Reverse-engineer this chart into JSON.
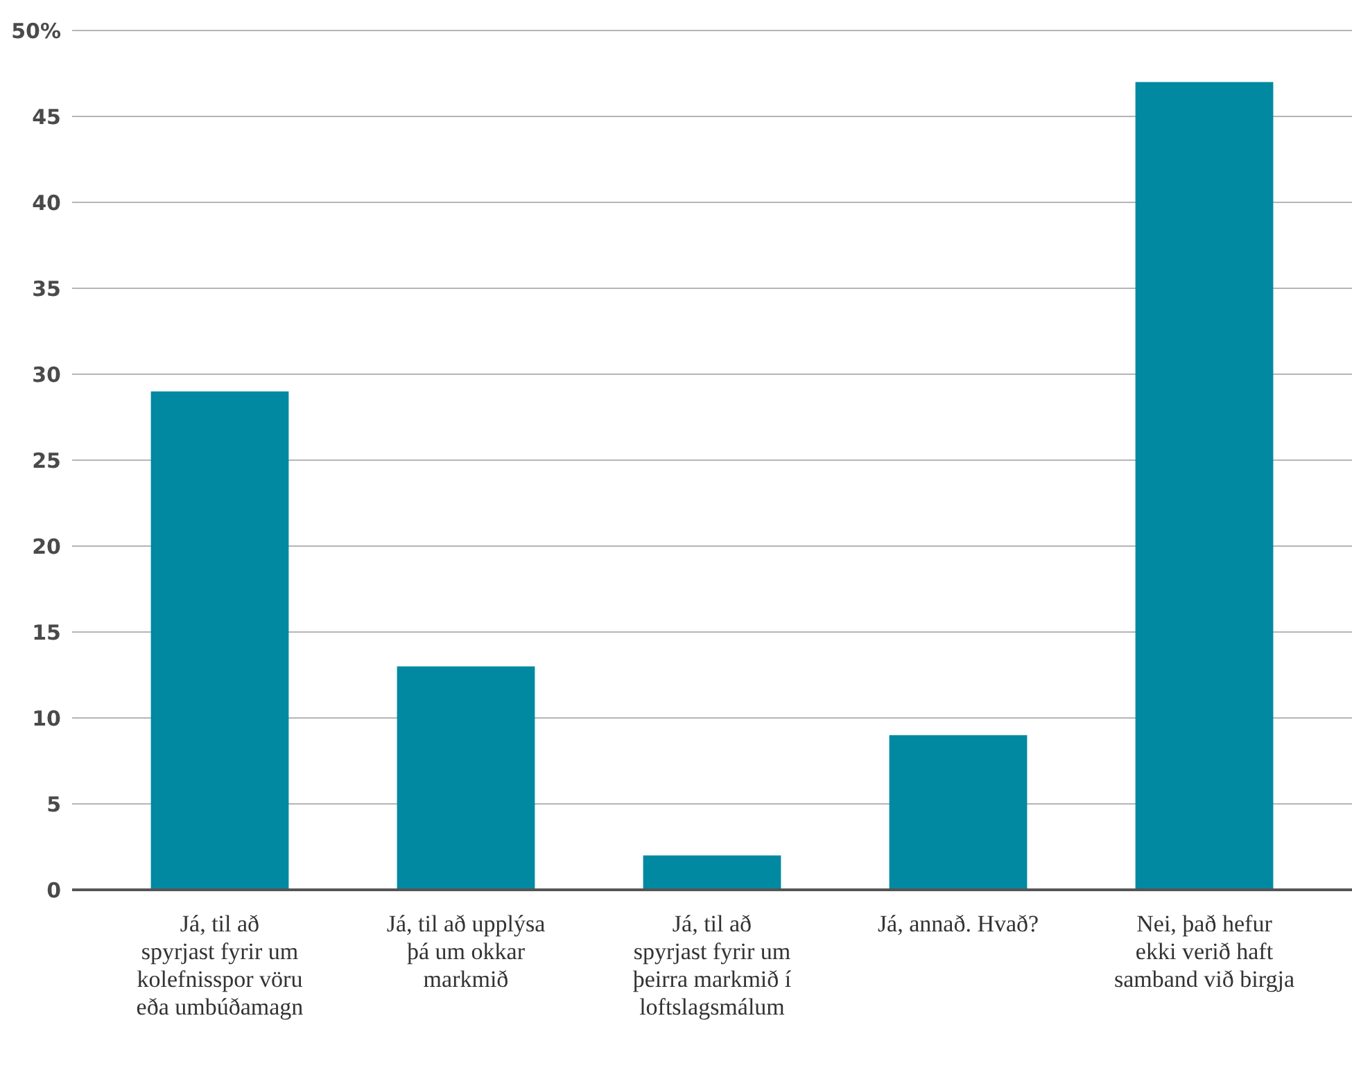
{
  "chart_data": {
    "type": "bar",
    "categories": [
      "Já, til að spyrjast fyrir um kolefnisspor vöru eða umbúðamagn",
      "Já, til að upplýsa þá um okkar markmið",
      "Já, til að spyrjast fyrir um þeirra markmið í loftslagsmálum",
      "Já, annað. Hvað?",
      "Nei, það hefur ekki verið haft samband við birgja"
    ],
    "values": [
      29,
      13,
      2,
      9,
      47
    ],
    "color": "#0089a1",
    "ylim": [
      0,
      50
    ],
    "yticks": [
      0,
      5,
      10,
      15,
      20,
      25,
      30,
      35,
      40,
      45,
      {
        "value": 50,
        "label": "50%"
      }
    ],
    "grid": "y"
  }
}
